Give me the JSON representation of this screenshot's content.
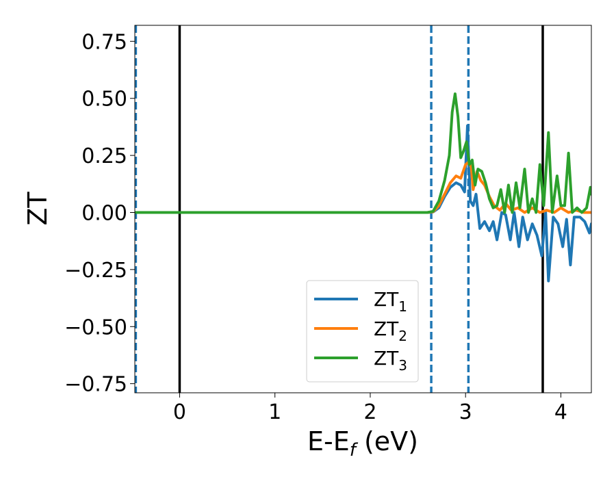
{
  "chart_data": {
    "type": "line",
    "xlabel_main": "E-E",
    "xlabel_sub": "f",
    "xlabel_tail": " (eV)",
    "ylabel": "ZT",
    "xlim": [
      -0.47,
      4.32
    ],
    "ylim": [
      -0.79,
      0.82
    ],
    "xticks": [
      0,
      1,
      2,
      3,
      4
    ],
    "xtick_labels": [
      "0",
      "1",
      "2",
      "3",
      "4"
    ],
    "yticks": [
      0.75,
      0.5,
      0.25,
      0.0,
      -0.25,
      -0.5,
      -0.75
    ],
    "ytick_labels": [
      "0.75",
      "0.50",
      "0.25",
      "0.00",
      "−0.25",
      "−0.50",
      "−0.75"
    ],
    "grid": false,
    "legend_position": "lower-center",
    "vertical_lines": [
      {
        "x": -0.46,
        "style": "dashed",
        "color": "#1f77b4"
      },
      {
        "x": 0.0,
        "style": "solid",
        "color": "#000000"
      },
      {
        "x": 2.64,
        "style": "dashed",
        "color": "#1f77b4"
      },
      {
        "x": 3.03,
        "style": "dashed",
        "color": "#1f77b4"
      },
      {
        "x": 3.81,
        "style": "solid",
        "color": "#000000"
      }
    ],
    "series": [
      {
        "name_main": "ZT",
        "name_sub": "1",
        "color": "#1f77b4",
        "points": [
          [
            -0.47,
            0
          ],
          [
            2.6,
            0
          ],
          [
            2.66,
            0.002
          ],
          [
            2.72,
            0.02
          ],
          [
            2.78,
            0.07
          ],
          [
            2.84,
            0.11
          ],
          [
            2.9,
            0.13
          ],
          [
            2.95,
            0.12
          ],
          [
            2.99,
            0.09
          ],
          [
            3.02,
            0.38
          ],
          [
            3.05,
            0.05
          ],
          [
            3.08,
            0.03
          ],
          [
            3.11,
            0.08
          ],
          [
            3.15,
            -0.07
          ],
          [
            3.2,
            -0.04
          ],
          [
            3.25,
            -0.08
          ],
          [
            3.29,
            -0.04
          ],
          [
            3.33,
            -0.12
          ],
          [
            3.38,
            0.0
          ],
          [
            3.42,
            -0.01
          ],
          [
            3.47,
            -0.12
          ],
          [
            3.51,
            0.0
          ],
          [
            3.56,
            -0.15
          ],
          [
            3.6,
            -0.02
          ],
          [
            3.65,
            -0.12
          ],
          [
            3.7,
            -0.05
          ],
          [
            3.75,
            -0.1
          ],
          [
            3.8,
            -0.19
          ],
          [
            3.84,
            0.0
          ],
          [
            3.87,
            -0.3
          ],
          [
            3.92,
            -0.02
          ],
          [
            3.97,
            -0.05
          ],
          [
            4.02,
            -0.15
          ],
          [
            4.06,
            -0.03
          ],
          [
            4.1,
            -0.23
          ],
          [
            4.14,
            -0.02
          ],
          [
            4.2,
            -0.02
          ],
          [
            4.25,
            -0.04
          ],
          [
            4.3,
            -0.09
          ],
          [
            4.32,
            -0.05
          ]
        ]
      },
      {
        "name_main": "ZT",
        "name_sub": "2",
        "color": "#ff7f0e",
        "points": [
          [
            -0.47,
            0
          ],
          [
            2.6,
            0
          ],
          [
            2.66,
            0.003
          ],
          [
            2.72,
            0.03
          ],
          [
            2.78,
            0.08
          ],
          [
            2.84,
            0.13
          ],
          [
            2.9,
            0.16
          ],
          [
            2.95,
            0.15
          ],
          [
            3.0,
            0.21
          ],
          [
            3.03,
            0.22
          ],
          [
            3.06,
            0.2
          ],
          [
            3.08,
            0.1
          ],
          [
            3.12,
            0.18
          ],
          [
            3.16,
            0.14
          ],
          [
            3.2,
            0.12
          ],
          [
            3.25,
            0.07
          ],
          [
            3.3,
            0.03
          ],
          [
            3.36,
            0.01
          ],
          [
            3.42,
            0.04
          ],
          [
            3.48,
            0.01
          ],
          [
            3.55,
            0.02
          ],
          [
            3.62,
            0.0
          ],
          [
            3.7,
            0.02
          ],
          [
            3.78,
            0.0
          ],
          [
            3.85,
            0.01
          ],
          [
            3.93,
            0.0
          ],
          [
            4.0,
            0.02
          ],
          [
            4.08,
            0.0
          ],
          [
            4.16,
            0.01
          ],
          [
            4.24,
            0.0
          ],
          [
            4.32,
            0.0
          ]
        ]
      },
      {
        "name_main": "ZT",
        "name_sub": "3",
        "color": "#2ca02c",
        "points": [
          [
            -0.47,
            0
          ],
          [
            2.6,
            0
          ],
          [
            2.66,
            0.005
          ],
          [
            2.72,
            0.05
          ],
          [
            2.78,
            0.14
          ],
          [
            2.83,
            0.25
          ],
          [
            2.86,
            0.44
          ],
          [
            2.89,
            0.52
          ],
          [
            2.92,
            0.42
          ],
          [
            2.95,
            0.24
          ],
          [
            2.98,
            0.27
          ],
          [
            3.01,
            0.31
          ],
          [
            3.04,
            0.21
          ],
          [
            3.07,
            0.23
          ],
          [
            3.1,
            0.12
          ],
          [
            3.13,
            0.19
          ],
          [
            3.17,
            0.18
          ],
          [
            3.21,
            0.13
          ],
          [
            3.25,
            0.06
          ],
          [
            3.29,
            0.02
          ],
          [
            3.33,
            0.03
          ],
          [
            3.37,
            0.1
          ],
          [
            3.41,
            0.0
          ],
          [
            3.45,
            0.12
          ],
          [
            3.49,
            0.0
          ],
          [
            3.53,
            0.13
          ],
          [
            3.57,
            0.02
          ],
          [
            3.62,
            0.19
          ],
          [
            3.66,
            0.0
          ],
          [
            3.7,
            0.06
          ],
          [
            3.74,
            0.0
          ],
          [
            3.78,
            0.21
          ],
          [
            3.82,
            0.03
          ],
          [
            3.87,
            0.35
          ],
          [
            3.91,
            0.0
          ],
          [
            3.96,
            0.16
          ],
          [
            4.0,
            0.03
          ],
          [
            4.04,
            0.03
          ],
          [
            4.08,
            0.26
          ],
          [
            4.12,
            0.0
          ],
          [
            4.17,
            0.02
          ],
          [
            4.22,
            0.0
          ],
          [
            4.27,
            0.02
          ],
          [
            4.31,
            0.11
          ],
          [
            4.32,
            0.08
          ]
        ]
      }
    ]
  }
}
